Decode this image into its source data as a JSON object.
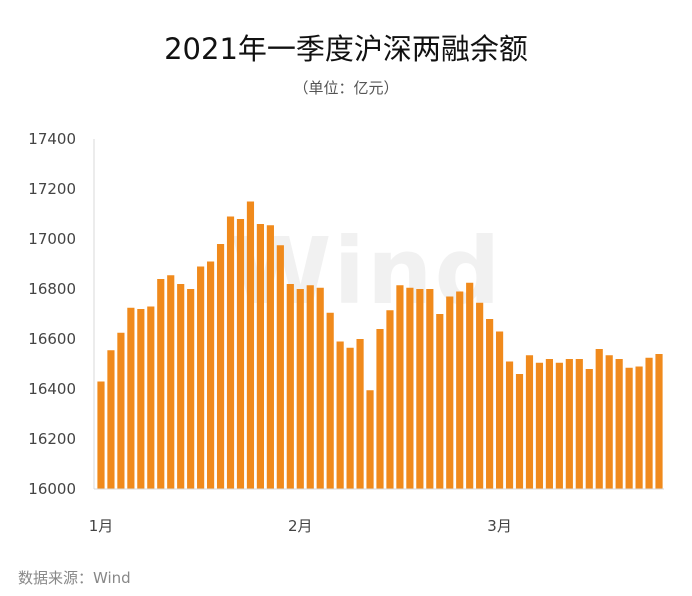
{
  "title": "2021年一季度沪深两融余额",
  "subtitle": "（单位：亿元）",
  "source": "数据来源：Wind",
  "watermark": "Wind",
  "colors": {
    "bar": "#f08a1c",
    "axis": "#d9d9d9",
    "text": "#444444"
  },
  "chart_data": {
    "type": "bar",
    "ylim": [
      16000,
      17400
    ],
    "yticks": [
      16000,
      16200,
      16400,
      16600,
      16800,
      17000,
      17200,
      17400
    ],
    "xticks": [
      {
        "label": "1月",
        "index": 0
      },
      {
        "label": "2月",
        "index": 20
      },
      {
        "label": "3月",
        "index": 40
      }
    ],
    "values": [
      16430,
      16555,
      16625,
      16725,
      16720,
      16730,
      16840,
      16855,
      16820,
      16800,
      16890,
      16910,
      16980,
      17090,
      17080,
      17150,
      17060,
      17055,
      16975,
      16820,
      16800,
      16815,
      16805,
      16705,
      16590,
      16565,
      16600,
      16395,
      16640,
      16715,
      16815,
      16805,
      16800,
      16800,
      16700,
      16770,
      16790,
      16825,
      16745,
      16680,
      16630,
      16510,
      16460,
      16535,
      16505,
      16520,
      16505,
      16520,
      16520,
      16480,
      16560,
      16535,
      16520,
      16485,
      16490,
      16525,
      16540
    ]
  }
}
